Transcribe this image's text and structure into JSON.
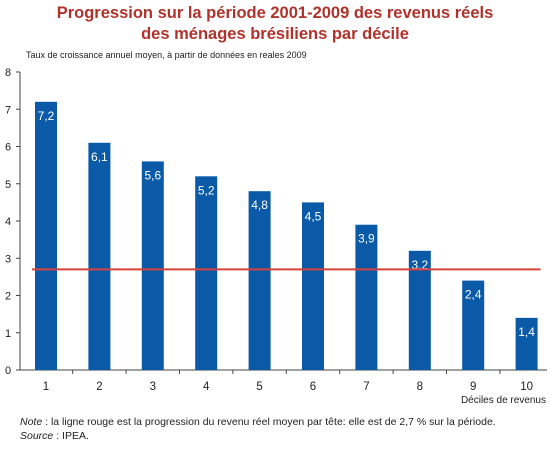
{
  "title_line1": "Progression sur la période 2001-2009 des revenus réels",
  "title_line2": "des ménages brésiliens par décile",
  "subtitle": "Taux de croissance annuel moyen, à partir de données en reales 2009",
  "note_label": "Note",
  "note_text": " : la ligne rouge est la progression du revenu réel moyen par tête: elle est de 2,7 % sur la période.",
  "source_label": "Source",
  "source_text": " : IPEA.",
  "colors": {
    "bar": "#0a5aa8",
    "reference_line": "#d9413a",
    "title": "#b0322b"
  },
  "chart_data": {
    "type": "bar",
    "title": "Progression sur la période 2001-2009 des revenus réels des ménages brésiliens par décile",
    "subtitle": "Taux de croissance annuel moyen, à partir de données en reales 2009",
    "xlabel": "Déciles de revenus",
    "ylabel": "",
    "categories": [
      "1",
      "2",
      "3",
      "4",
      "5",
      "6",
      "7",
      "8",
      "9",
      "10"
    ],
    "values": [
      7.2,
      6.1,
      5.6,
      5.2,
      4.8,
      4.5,
      3.9,
      3.2,
      2.4,
      1.4
    ],
    "value_labels": [
      "7,2",
      "6,1",
      "5,6",
      "5,2",
      "4,8",
      "4,5",
      "3,9",
      "3,2",
      "2,4",
      "1,4"
    ],
    "reference_line": 2.7,
    "ylim": [
      0,
      8
    ],
    "yticks": [
      "0",
      "1",
      "2",
      "3",
      "4",
      "5",
      "6",
      "7",
      "8"
    ],
    "grid": false,
    "legend": "none"
  }
}
